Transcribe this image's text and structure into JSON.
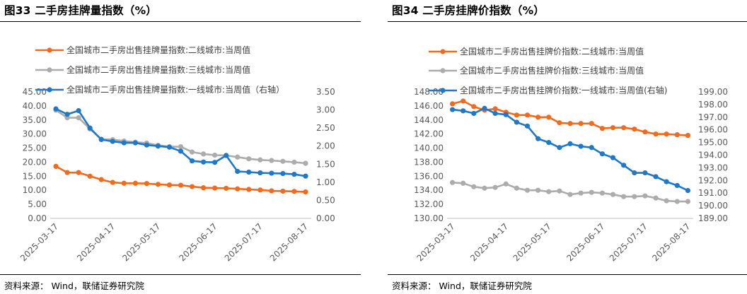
{
  "figures": [
    {
      "title": "图33 二手房挂牌量指数（%）",
      "source": "资料来源：  Wind，联储证券研究院"
    },
    {
      "title": "图34 二手房挂牌价指数（%）",
      "source": "资料来源：  Wind，联储证券研究院"
    }
  ],
  "chart_data": [
    {
      "type": "line",
      "title": "图33 二手房挂牌量指数（%）",
      "x": [
        "2025-03-17",
        "2025-03-24",
        "2025-03-31",
        "2025-04-07",
        "2025-04-14",
        "2025-04-21",
        "2025-04-28",
        "2025-05-05",
        "2025-05-12",
        "2025-05-19",
        "2025-05-26",
        "2025-06-02",
        "2025-06-09",
        "2025-06-16",
        "2025-06-23",
        "2025-06-30",
        "2025-07-07",
        "2025-07-14",
        "2025-07-21",
        "2025-07-28",
        "2025-08-04",
        "2025-08-11",
        "2025-08-18"
      ],
      "xticks": [
        "2025-03-17",
        "2025-04-17",
        "2025-05-17",
        "2025-06-17",
        "2025-07-17",
        "2025-08-17"
      ],
      "yticks_left": [
        "0.00",
        "5.00",
        "10.00",
        "15.00",
        "20.00",
        "25.00",
        "30.00",
        "35.00",
        "40.00",
        "45.00"
      ],
      "yticks_right": [
        "0.00",
        "0.50",
        "1.00",
        "1.50",
        "2.00",
        "2.50",
        "3.00",
        "3.50"
      ],
      "ylim_left": [
        0,
        45
      ],
      "ylim_right": [
        0,
        3.5
      ],
      "legend_position": "top",
      "series": [
        {
          "name": "全国城市二手房出售挂牌量指数:二线城市:当周值",
          "color": "#F26B1D",
          "axis": "left",
          "values": [
            18.5,
            16.3,
            16.3,
            15.0,
            13.8,
            12.8,
            12.5,
            12.5,
            12.4,
            12.1,
            11.9,
            11.8,
            11.3,
            10.9,
            10.8,
            10.7,
            10.5,
            10.3,
            10.1,
            9.8,
            9.7,
            9.6,
            9.4
          ]
        },
        {
          "name": "全国城市二手房出售挂牌量指数:三线城市:当周值",
          "color": "#ACACAC",
          "axis": "left",
          "values": [
            38.5,
            35.8,
            35.8,
            31.8,
            28.2,
            28.0,
            27.5,
            27.1,
            26.8,
            26.0,
            25.5,
            25.5,
            23.6,
            22.9,
            22.5,
            22.4,
            21.8,
            21.2,
            20.8,
            20.6,
            20.3,
            20.0,
            19.6
          ]
        },
        {
          "name": "全国城市二手房出售挂牌量指数:一线城市:当周值（右轴）",
          "color": "#1F78C8",
          "axis": "right",
          "values": [
            3.03,
            2.88,
            2.98,
            2.5,
            2.18,
            2.13,
            2.09,
            2.09,
            2.03,
            2.0,
            1.97,
            1.86,
            1.59,
            1.56,
            1.55,
            1.74,
            1.3,
            1.28,
            1.26,
            1.25,
            1.24,
            1.22,
            1.17
          ]
        }
      ]
    },
    {
      "type": "line",
      "title": "图34 二手房挂牌价指数（%）",
      "x": [
        "2025-03-17",
        "2025-03-24",
        "2025-03-31",
        "2025-04-07",
        "2025-04-14",
        "2025-04-21",
        "2025-04-28",
        "2025-05-05",
        "2025-05-12",
        "2025-05-19",
        "2025-05-26",
        "2025-06-02",
        "2025-06-09",
        "2025-06-16",
        "2025-06-23",
        "2025-06-30",
        "2025-07-07",
        "2025-07-14",
        "2025-07-21",
        "2025-07-28",
        "2025-08-04",
        "2025-08-11",
        "2025-08-18"
      ],
      "xticks": [
        "2025-03-17",
        "2025-04-17",
        "2025-05-17",
        "2025-06-17",
        "2025-07-17",
        "2025-08-17"
      ],
      "yticks_left": [
        "130.00",
        "132.00",
        "134.00",
        "136.00",
        "138.00",
        "140.00",
        "142.00",
        "144.00",
        "146.00",
        "148.00"
      ],
      "yticks_right": [
        "189.00",
        "190.00",
        "191.00",
        "192.00",
        "193.00",
        "194.00",
        "195.00",
        "196.00",
        "197.00",
        "198.00",
        "199.00"
      ],
      "ylim_left": [
        130,
        148
      ],
      "ylim_right": [
        189,
        199
      ],
      "legend_position": "top",
      "series": [
        {
          "name": "全国城市二手房出售挂牌价指数:二线城市:当周值",
          "color": "#F26B1D",
          "axis": "left",
          "values": [
            146.3,
            146.7,
            145.9,
            145.4,
            145.6,
            145.1,
            144.7,
            144.7,
            144.4,
            144.4,
            143.6,
            143.5,
            143.5,
            143.5,
            142.8,
            142.9,
            142.9,
            142.7,
            142.3,
            142.0,
            142.0,
            141.9,
            141.8
          ]
        },
        {
          "name": "全国城市二手房出售挂牌价指数:三线城市:当周值",
          "color": "#ACACAC",
          "axis": "left",
          "values": [
            135.1,
            135.0,
            134.5,
            134.3,
            134.4,
            134.9,
            134.3,
            134.0,
            134.0,
            133.8,
            133.9,
            133.4,
            133.6,
            133.7,
            133.6,
            133.4,
            133.1,
            133.1,
            133.2,
            132.9,
            132.5,
            132.4,
            132.4
          ]
        },
        {
          "name": "全国城市二手房出售挂牌价指数:一线城市:当周值(右轴)",
          "color": "#1F78C8",
          "axis": "right",
          "values": [
            197.6,
            197.5,
            197.3,
            197.7,
            197.3,
            197.2,
            196.6,
            196.3,
            195.3,
            195.0,
            194.6,
            194.9,
            194.7,
            194.6,
            194.1,
            193.8,
            193.2,
            192.6,
            192.6,
            192.3,
            191.9,
            191.6,
            191.2
          ]
        }
      ]
    }
  ]
}
